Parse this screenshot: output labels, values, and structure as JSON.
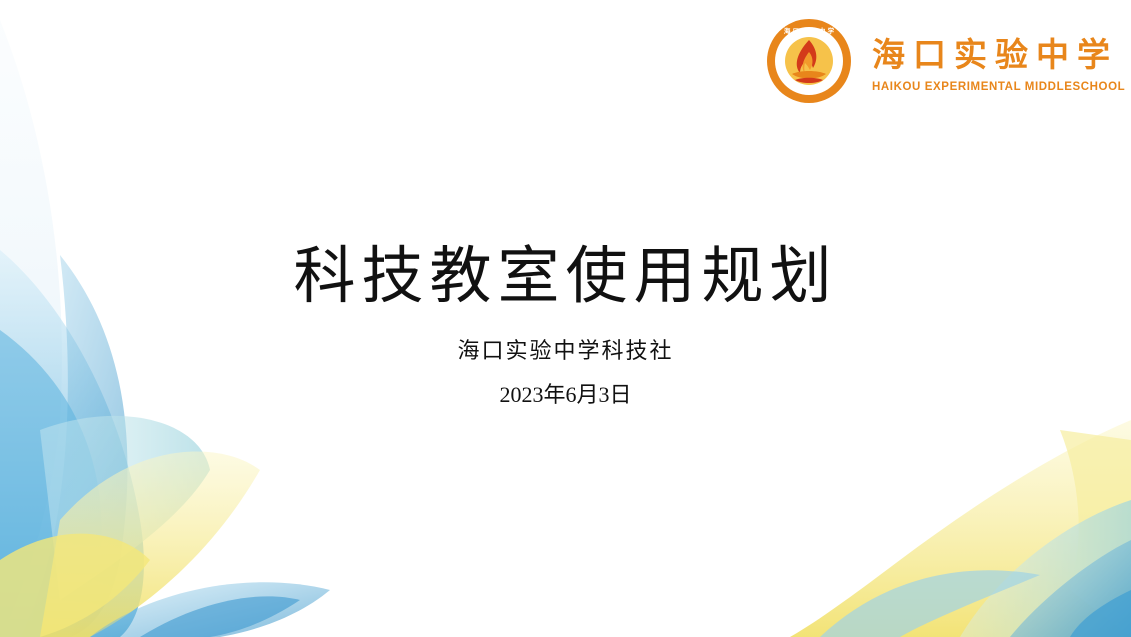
{
  "slide": {
    "title": "科技教室使用规划",
    "subtitle": "海口实验中学科技社",
    "date": "2023年6月3日"
  },
  "logo": {
    "school_name_cn": "海口实验中学",
    "school_name_en": "HAIKOU EXPERIMENTAL MIDDLESCHOOL",
    "emblem_ring_text": "HAIKOU EXPERIMENTAL MIDDLE SCHOOL",
    "emblem_top_text": "海 口 实 验 中 学",
    "emblem_icon": "flame-emblem-icon"
  },
  "colors": {
    "brand_orange": "#e8861b",
    "brand_red": "#d33a1a",
    "decor_blue": "#6cbce0",
    "decor_yellow": "#f3e46b",
    "decor_teal": "#bfe4ea",
    "text": "#111111"
  }
}
